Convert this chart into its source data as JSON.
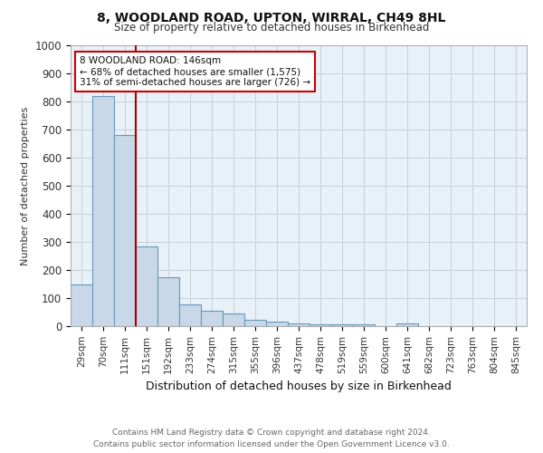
{
  "title": "8, WOODLAND ROAD, UPTON, WIRRAL, CH49 8HL",
  "subtitle": "Size of property relative to detached houses in Birkenhead",
  "xlabel": "Distribution of detached houses by size in Birkenhead",
  "ylabel": "Number of detached properties",
  "categories": [
    "29sqm",
    "70sqm",
    "111sqm",
    "151sqm",
    "192sqm",
    "233sqm",
    "274sqm",
    "315sqm",
    "355sqm",
    "396sqm",
    "437sqm",
    "478sqm",
    "519sqm",
    "559sqm",
    "600sqm",
    "641sqm",
    "682sqm",
    "723sqm",
    "763sqm",
    "804sqm",
    "845sqm"
  ],
  "values": [
    150,
    820,
    680,
    285,
    175,
    78,
    55,
    45,
    22,
    15,
    10,
    8,
    8,
    5,
    0,
    10,
    0,
    0,
    0,
    0,
    0
  ],
  "bar_color": "#c8d8e8",
  "bar_edge_color": "#6699bb",
  "property_line_x": 2.5,
  "property_line_color": "#aa0000",
  "annotation_text": "8 WOODLAND ROAD: 146sqm\n← 68% of detached houses are smaller (1,575)\n31% of semi-detached houses are larger (726) →",
  "annotation_box_color": "#ffffff",
  "annotation_box_edge_color": "#cc0000",
  "ylim": [
    0,
    1000
  ],
  "yticks": [
    0,
    100,
    200,
    300,
    400,
    500,
    600,
    700,
    800,
    900,
    1000
  ],
  "footer_line1": "Contains HM Land Registry data © Crown copyright and database right 2024.",
  "footer_line2": "Contains public sector information licensed under the Open Government Licence v3.0.",
  "bg_color": "#ffffff",
  "plot_bg_color": "#e8f0f8",
  "grid_color": "#c8d0d8",
  "title_fontsize": 10,
  "subtitle_fontsize": 8.5,
  "xlabel_fontsize": 9,
  "ylabel_fontsize": 8,
  "tick_fontsize": 7.5,
  "annotation_fontsize": 7.5,
  "footer_fontsize": 6.5
}
